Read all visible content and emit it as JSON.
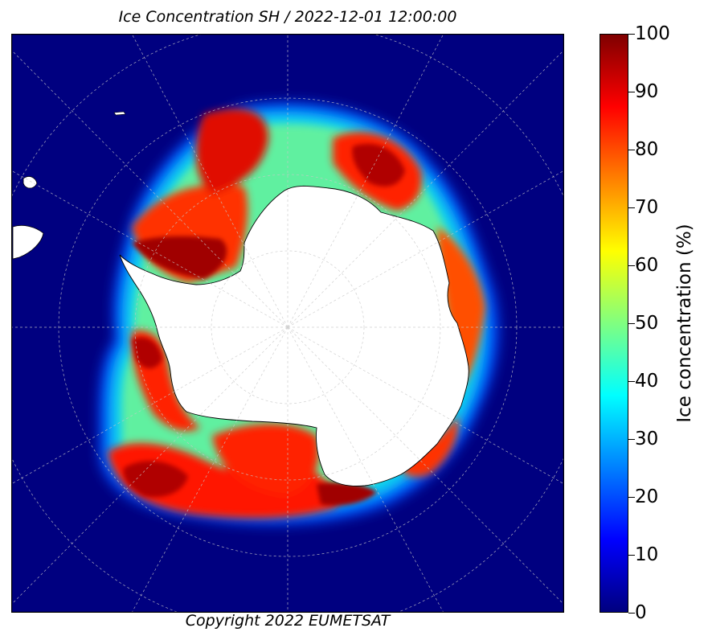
{
  "title": "Ice Concentration SH / 2022-12-01 12:00:00",
  "copyright": "Copyright 2022 EUMETSAT",
  "colorbar": {
    "label": "Ice concentration (%)",
    "ticks": [
      "0",
      "10",
      "20",
      "30",
      "40",
      "50",
      "60",
      "70",
      "80",
      "90",
      "100"
    ],
    "range": [
      0,
      100
    ],
    "colormap": "jet",
    "colors": [
      "#00007f",
      "#0000ff",
      "#0080ff",
      "#00ffff",
      "#80ff80",
      "#ffff00",
      "#ff8000",
      "#ff0000",
      "#7f0000"
    ]
  },
  "map": {
    "projection": "south polar stereographic",
    "graticule": "dashed",
    "ocean_color": "#000080",
    "land_color": "#ffffff"
  }
}
